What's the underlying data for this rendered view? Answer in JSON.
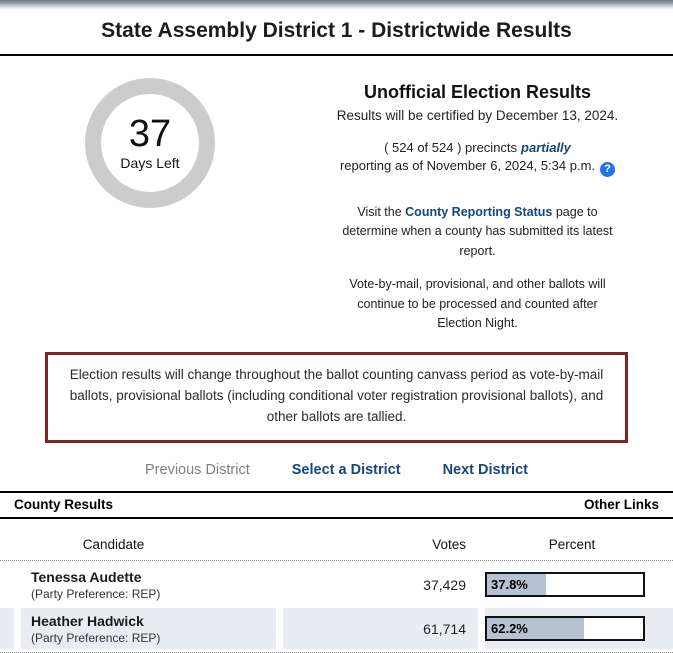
{
  "page": {
    "title": "State Assembly District 1 - Districtwide Results"
  },
  "summary": {
    "days_left_number": "37",
    "days_left_label": "Days Left",
    "heading": "Unofficial Election Results",
    "certify_line": "Results will be certified by December 13, 2024.",
    "precincts_prefix": "( 524 of 524 ) precincts",
    "precincts_emphasis": "partially",
    "reporting_line": "reporting as of November 6, 2024, 5:34 p.m.",
    "help_icon_glyph": "?",
    "visit_prefix": "Visit the",
    "visit_link": "County Reporting Status",
    "visit_suffix": "page to determine when a county has submitted its latest report.",
    "vbm_note": "Vote-by-mail, provisional, and other ballots will continue to be processed and counted after Election Night."
  },
  "notice": {
    "text": "Election results will change throughout the ballot counting canvass period as vote-by-mail ballots, provisional ballots (including conditional voter registration provisional ballots), and other ballots are tallied."
  },
  "nav": {
    "previous": "Previous District",
    "select": "Select a District",
    "next": "Next District"
  },
  "section_bar": {
    "left": "County Results",
    "right": "Other Links"
  },
  "results_table": {
    "headers": {
      "candidate": "Candidate",
      "votes": "Votes",
      "percent": "Percent"
    },
    "rows": [
      {
        "name": "Tenessa Audette",
        "party": "(Party Preference: REP)",
        "votes": "37,429",
        "percent_label": "37.8%",
        "percent_value": 37.8
      },
      {
        "name": "Heather Hadwick",
        "party": "(Party Preference: REP)",
        "votes": "61,714",
        "percent_label": "62.2%",
        "percent_value": 62.2
      }
    ]
  },
  "colors": {
    "accent_navy": "#16477c",
    "notice_border": "#7f2424",
    "bar_fill": "#b6c2d2",
    "row_alt_bg": "#e9edf2",
    "help_icon_bg": "#2273e8"
  }
}
